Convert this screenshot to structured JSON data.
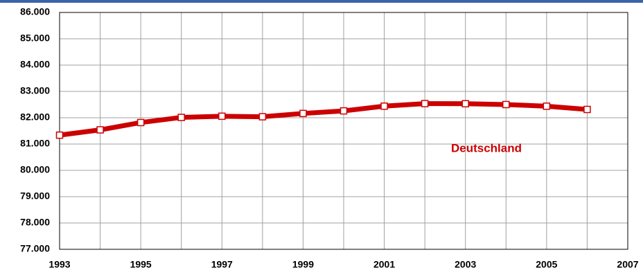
{
  "chart_data": {
    "type": "line",
    "x": [
      1993,
      1994,
      1995,
      1996,
      1997,
      1998,
      1999,
      2000,
      2001,
      2002,
      2003,
      2004,
      2005,
      2006
    ],
    "series": [
      {
        "name": "Deutschland",
        "color": "#cc0000",
        "values": [
          81338,
          81539,
          81817,
          82012,
          82057,
          82037,
          82163,
          82260,
          82440,
          82537,
          82532,
          82501,
          82438,
          82315
        ]
      }
    ],
    "xlim": [
      1993,
      2007
    ],
    "xticks": [
      1993,
      1995,
      1997,
      1999,
      2001,
      2003,
      2005,
      2007
    ],
    "x_minor_ticks": [
      1994,
      1996,
      1998,
      2000,
      2002,
      2004,
      2006
    ],
    "ylim": [
      77000,
      86000
    ],
    "yticks": [
      {
        "value": 77000,
        "label": "77.000"
      },
      {
        "value": 78000,
        "label": "78.000"
      },
      {
        "value": 79000,
        "label": "79.000"
      },
      {
        "value": 80000,
        "label": "80.000"
      },
      {
        "value": 81000,
        "label": "81.000"
      },
      {
        "value": 82000,
        "label": "82.000"
      },
      {
        "value": 83000,
        "label": "83.000"
      },
      {
        "value": 84000,
        "label": "84.000"
      },
      {
        "value": 85000,
        "label": "85.000"
      },
      {
        "value": 86000,
        "label": "86.000"
      }
    ],
    "grid": true
  }
}
